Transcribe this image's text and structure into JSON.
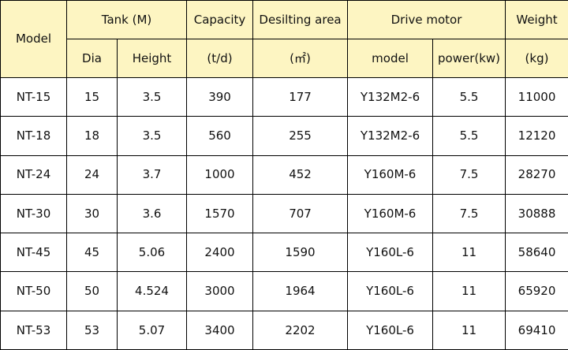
{
  "header": {
    "model": "Model",
    "tank": "Tank (M)",
    "dia": "Dia",
    "height": "Height",
    "capacity": "Capacity",
    "capacity_unit": "(t/d)",
    "desilting_area": "Desilting area",
    "desilting_area_unit": "(㎡)",
    "drive_motor": "Drive motor",
    "motor_model": "model",
    "motor_power": "power(kw)",
    "weight": "Weight",
    "weight_unit": "(kg)"
  },
  "rows": [
    {
      "model": "NT-15",
      "dia": "15",
      "height": "3.5",
      "capacity": "390",
      "area": "177",
      "motor_model": "Y132M2-6",
      "power": "5.5",
      "weight": "11000"
    },
    {
      "model": "NT-18",
      "dia": "18",
      "height": "3.5",
      "capacity": "560",
      "area": "255",
      "motor_model": "Y132M2-6",
      "power": "5.5",
      "weight": "12120"
    },
    {
      "model": "NT-24",
      "dia": "24",
      "height": "3.7",
      "capacity": "1000",
      "area": "452",
      "motor_model": "Y160M-6",
      "power": "7.5",
      "weight": "28270"
    },
    {
      "model": "NT-30",
      "dia": "30",
      "height": "3.6",
      "capacity": "1570",
      "area": "707",
      "motor_model": "Y160M-6",
      "power": "7.5",
      "weight": "30888"
    },
    {
      "model": "NT-45",
      "dia": "45",
      "height": "5.06",
      "capacity": "2400",
      "area": "1590",
      "motor_model": "Y160L-6",
      "power": "11",
      "weight": "58640"
    },
    {
      "model": "NT-50",
      "dia": "50",
      "height": "4.524",
      "capacity": "3000",
      "area": "1964",
      "motor_model": "Y160L-6",
      "power": "11",
      "weight": "65920"
    },
    {
      "model": "NT-53",
      "dia": "53",
      "height": "5.07",
      "capacity": "3400",
      "area": "2202",
      "motor_model": "Y160L-6",
      "power": "11",
      "weight": "69410"
    }
  ],
  "colors": {
    "header_bg": "#fdf5c2",
    "border": "#000000",
    "body_bg": "#ffffff"
  }
}
